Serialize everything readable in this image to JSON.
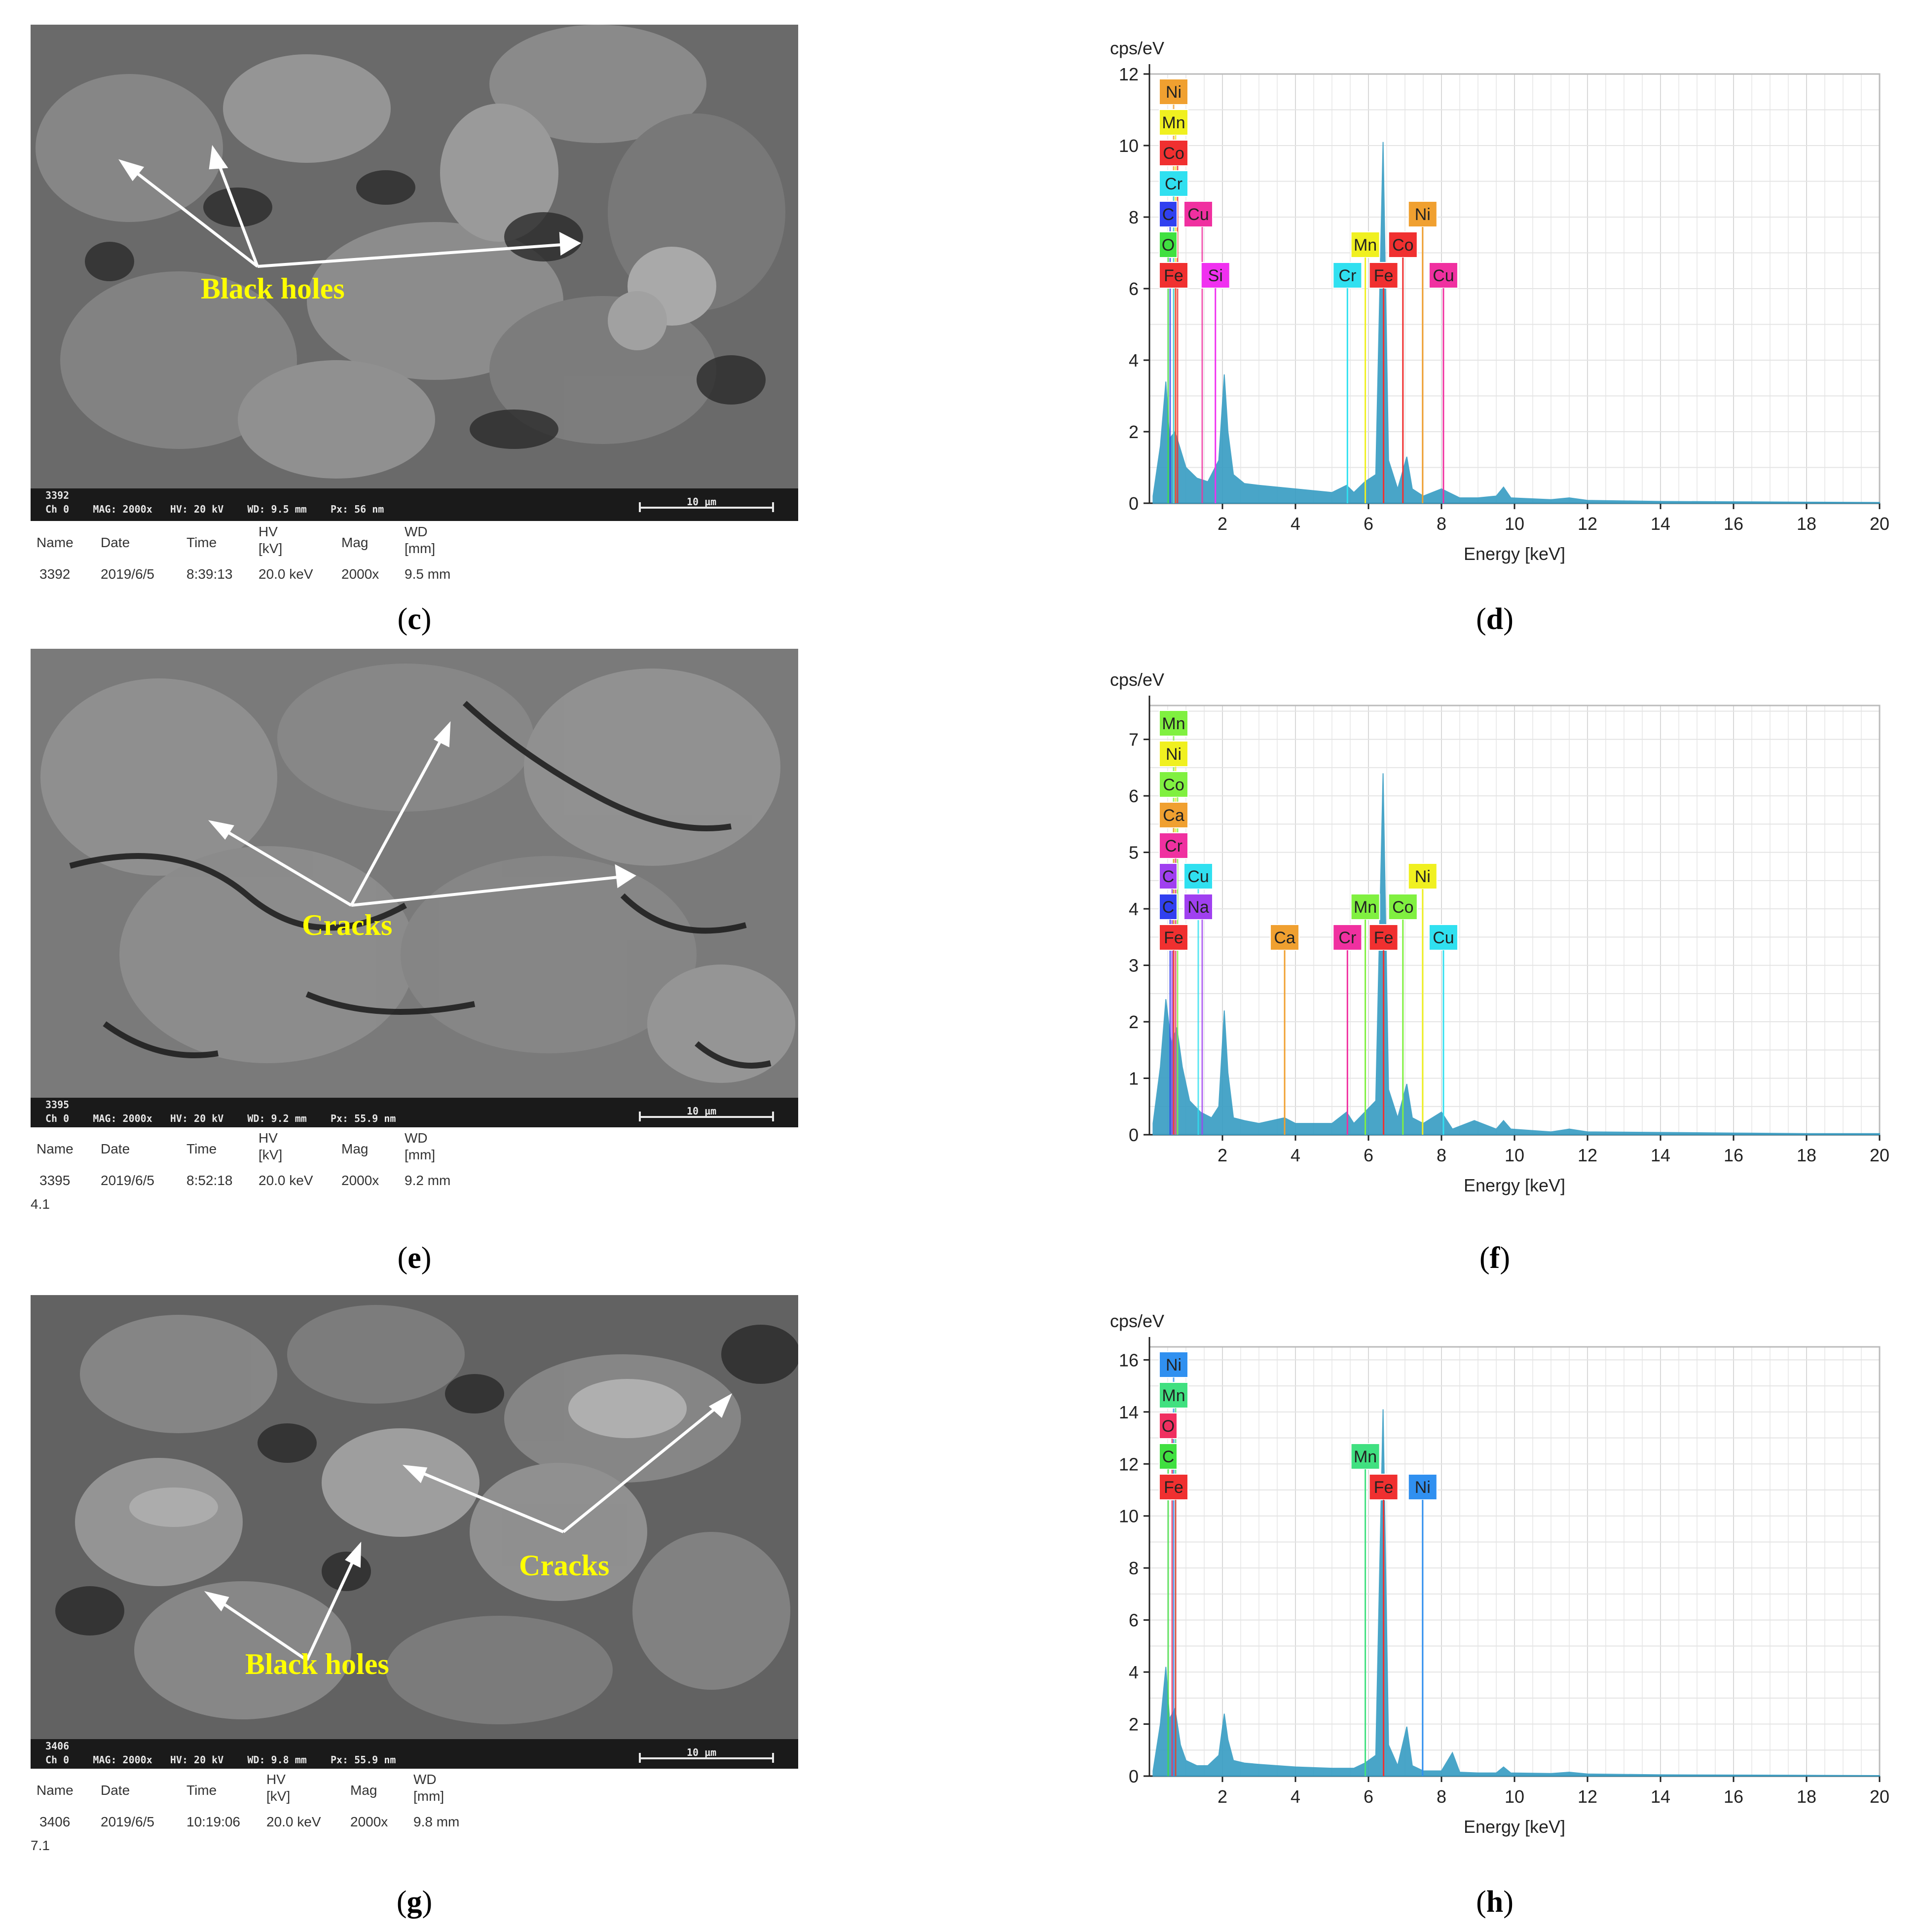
{
  "panels": [
    {
      "id": "c",
      "label": "c",
      "sem_id": "3392",
      "bar_info": "Ch 0    MAG: 2000x   HV: 20 kV    WD: 9.5 mm    Px: 56 nm",
      "scale_label": "10 µm",
      "meta_headers": {
        "name": "Name",
        "date": "Date",
        "time": "Time",
        "hv": "HV",
        "hv_unit": "[kV]",
        "mag": "Mag",
        "wd": "WD",
        "wd_unit": "[mm]"
      },
      "meta_values": {
        "name": "3392",
        "date": "2019/6/5",
        "time": "8:39:13",
        "hv": "20.0 keV",
        "mag": "2000x",
        "wd": "9.5 mm"
      },
      "extra": "",
      "annotations": [
        "Black holes"
      ]
    },
    {
      "id": "e",
      "label": "e",
      "sem_id": "3395",
      "bar_info": "Ch 0    MAG: 2000x   HV: 20 kV    WD: 9.2 mm    Px: 55.9 nm",
      "scale_label": "10 µm",
      "meta_headers": {
        "name": "Name",
        "date": "Date",
        "time": "Time",
        "hv": "HV",
        "hv_unit": "[kV]",
        "mag": "Mag",
        "wd": "WD",
        "wd_unit": "[mm]"
      },
      "meta_values": {
        "name": "3395",
        "date": "2019/6/5",
        "time": "8:52:18",
        "hv": "20.0 keV",
        "mag": "2000x",
        "wd": "9.2 mm"
      },
      "extra": "4.1",
      "annotations": [
        "Cracks"
      ]
    },
    {
      "id": "g",
      "label": "g",
      "sem_id": "3406",
      "bar_info": "Ch 0    MAG: 2000x   HV: 20 kV    WD: 9.8 mm    Px: 55.9 nm",
      "scale_label": "10 µm",
      "meta_headers": {
        "name": "Name",
        "date": "Date",
        "time": "Time",
        "hv": "HV",
        "hv_unit": "[kV]",
        "mag": "Mag",
        "wd": "WD",
        "wd_unit": "[mm]"
      },
      "meta_values": {
        "name": "3406",
        "date": "2019/6/5",
        "time": "10:19:06",
        "hv": "20.0 keV",
        "mag": "2000x",
        "wd": "9.8 mm"
      },
      "extra": "7.1",
      "annotations": [
        "Cracks",
        "Black holes"
      ]
    }
  ],
  "chart_data": [
    {
      "type": "line",
      "panel": "d",
      "ylabel": "cps/eV",
      "xlabel": "Energy [keV]",
      "xlim": [
        0,
        20
      ],
      "ylim": [
        0,
        12
      ],
      "yticks": [
        0,
        2,
        4,
        6,
        8,
        10,
        12
      ],
      "xticks": [
        2,
        4,
        6,
        8,
        10,
        12,
        14,
        16,
        18,
        20
      ],
      "grid": true,
      "series": [
        {
          "x": [
            0.1,
            0.3,
            0.45,
            0.55,
            0.7,
            0.85,
            1.0,
            1.3,
            1.6,
            1.9,
            2.05,
            2.15,
            2.3,
            2.6,
            3.0,
            4.0,
            5.0,
            5.4,
            5.6,
            5.9,
            6.2,
            6.4,
            6.55,
            6.8,
            7.05,
            7.2,
            7.5,
            8.0,
            8.5,
            9.0,
            9.5,
            9.7,
            9.9,
            11.0,
            11.5,
            12.0,
            14.0,
            16.0,
            18.0,
            20.0
          ],
          "y": [
            0.2,
            1.6,
            3.4,
            1.8,
            2.0,
            1.5,
            1.0,
            0.7,
            0.6,
            1.2,
            3.6,
            2.0,
            0.8,
            0.55,
            0.5,
            0.4,
            0.3,
            0.5,
            0.3,
            0.6,
            0.8,
            10.1,
            1.2,
            0.4,
            1.3,
            0.4,
            0.2,
            0.4,
            0.15,
            0.15,
            0.2,
            0.45,
            0.15,
            0.1,
            0.15,
            0.08,
            0.05,
            0.04,
            0.03,
            0.02
          ]
        }
      ],
      "element_labels": [
        {
          "text": "Ni",
          "color": "#f0a030",
          "row": 0,
          "group": "low"
        },
        {
          "text": "Mn",
          "color": "#f0f020",
          "row": 1,
          "group": "low"
        },
        {
          "text": "Co",
          "color": "#f03030",
          "row": 2,
          "group": "low"
        },
        {
          "text": "Cr",
          "color": "#30e0f0",
          "row": 3,
          "group": "low"
        },
        {
          "text": "C",
          "color": "#3040f0",
          "row": 4,
          "group": "low"
        },
        {
          "text": "Cu",
          "color": "#f030a0",
          "row": 4,
          "group": "low2"
        },
        {
          "text": "O",
          "color": "#40e040",
          "row": 5,
          "group": "low"
        },
        {
          "text": "Fe",
          "color": "#f03030",
          "row": 6,
          "group": "low"
        },
        {
          "text": "Si",
          "color": "#f030f0",
          "row": 6,
          "group": "si"
        },
        {
          "text": "Ni",
          "color": "#f0a030",
          "row": 4,
          "group": "high"
        },
        {
          "text": "Mn",
          "color": "#f0f020",
          "row": 5,
          "group": "high"
        },
        {
          "text": "Co",
          "color": "#f03030",
          "row": 5,
          "group": "high"
        },
        {
          "text": "Cr",
          "color": "#30e0f0",
          "row": 6,
          "group": "high"
        },
        {
          "text": "Fe",
          "color": "#f03030",
          "row": 6,
          "group": "high"
        },
        {
          "text": "Cu",
          "color": "#f030a0",
          "row": 6,
          "group": "high"
        }
      ]
    },
    {
      "type": "line",
      "panel": "f",
      "ylabel": "cps/eV",
      "xlabel": "Energy [keV]",
      "xlim": [
        0,
        20
      ],
      "ylim": [
        0,
        7.6
      ],
      "yticks": [
        0,
        1,
        2,
        3,
        4,
        5,
        6,
        7
      ],
      "xticks": [
        2,
        4,
        6,
        8,
        10,
        12,
        14,
        16,
        18,
        20
      ],
      "grid": true,
      "series": [
        {
          "x": [
            0.1,
            0.3,
            0.45,
            0.6,
            0.75,
            0.9,
            1.1,
            1.4,
            1.7,
            1.9,
            2.05,
            2.15,
            2.3,
            2.6,
            3.0,
            3.7,
            4.0,
            5.0,
            5.4,
            5.6,
            5.9,
            6.2,
            6.4,
            6.55,
            6.8,
            7.05,
            7.2,
            7.5,
            8.0,
            8.3,
            8.9,
            9.5,
            9.7,
            9.9,
            11.0,
            11.5,
            12.0,
            14.0,
            16.0,
            18.0,
            20.0
          ],
          "y": [
            0.2,
            1.2,
            2.4,
            1.6,
            1.9,
            1.2,
            0.6,
            0.4,
            0.3,
            0.5,
            2.2,
            1.1,
            0.3,
            0.25,
            0.2,
            0.3,
            0.2,
            0.2,
            0.4,
            0.2,
            0.4,
            0.6,
            6.4,
            0.8,
            0.3,
            0.9,
            0.3,
            0.2,
            0.4,
            0.1,
            0.25,
            0.1,
            0.25,
            0.1,
            0.05,
            0.1,
            0.05,
            0.04,
            0.03,
            0.02,
            0.02
          ]
        }
      ],
      "element_labels": [
        {
          "text": "Mn",
          "color": "#80f040",
          "row": 0,
          "group": "low"
        },
        {
          "text": "Ni",
          "color": "#f0f020",
          "row": 1,
          "group": "low"
        },
        {
          "text": "Co",
          "color": "#80f040",
          "row": 2,
          "group": "low"
        },
        {
          "text": "Ca",
          "color": "#f0a030",
          "row": 3,
          "group": "low"
        },
        {
          "text": "Cr",
          "color": "#f030a0",
          "row": 4,
          "group": "low"
        },
        {
          "text": "C",
          "color": "#a040f0",
          "row": 5,
          "group": "low"
        },
        {
          "text": "Cu",
          "color": "#30e0f0",
          "row": 5,
          "group": "low2"
        },
        {
          "text": "C",
          "color": "#3040f0",
          "row": 6,
          "group": "low"
        },
        {
          "text": "Na",
          "color": "#a040f0",
          "row": 6,
          "group": "low2"
        },
        {
          "text": "Fe",
          "color": "#f03030",
          "row": 7,
          "group": "low"
        },
        {
          "text": "Ca",
          "color": "#f0a030",
          "row": 7,
          "group": "ca"
        },
        {
          "text": "Ni",
          "color": "#f0f020",
          "row": 5,
          "group": "high"
        },
        {
          "text": "Mn",
          "color": "#80f040",
          "row": 6,
          "group": "high"
        },
        {
          "text": "Co",
          "color": "#80f040",
          "row": 6,
          "group": "high"
        },
        {
          "text": "Cr",
          "color": "#f030a0",
          "row": 7,
          "group": "high"
        },
        {
          "text": "Fe",
          "color": "#f03030",
          "row": 7,
          "group": "high"
        },
        {
          "text": "Cu",
          "color": "#30e0f0",
          "row": 7,
          "group": "high"
        }
      ]
    },
    {
      "type": "line",
      "panel": "h",
      "ylabel": "cps/eV",
      "xlabel": "Energy [keV]",
      "xlim": [
        0,
        20
      ],
      "ylim": [
        0,
        16.5
      ],
      "yticks": [
        0,
        2,
        4,
        6,
        8,
        10,
        12,
        14,
        16
      ],
      "xticks": [
        2,
        4,
        6,
        8,
        10,
        12,
        14,
        16,
        18,
        20
      ],
      "grid": true,
      "series": [
        {
          "x": [
            0.1,
            0.3,
            0.45,
            0.55,
            0.7,
            0.85,
            1.0,
            1.3,
            1.6,
            1.9,
            2.05,
            2.15,
            2.3,
            2.6,
            3.0,
            4.0,
            5.0,
            5.6,
            5.9,
            6.2,
            6.4,
            6.55,
            6.8,
            7.05,
            7.2,
            7.5,
            8.0,
            8.3,
            8.5,
            9.0,
            9.5,
            9.7,
            9.9,
            11.0,
            11.5,
            12.0,
            14.0,
            16.0,
            18.0,
            20.0
          ],
          "y": [
            0.2,
            2.0,
            4.2,
            2.2,
            2.6,
            1.2,
            0.6,
            0.4,
            0.4,
            0.8,
            2.4,
            1.4,
            0.6,
            0.5,
            0.45,
            0.35,
            0.3,
            0.3,
            0.5,
            0.8,
            14.1,
            1.2,
            0.4,
            1.9,
            0.4,
            0.2,
            0.2,
            0.9,
            0.15,
            0.12,
            0.12,
            0.35,
            0.12,
            0.1,
            0.15,
            0.08,
            0.05,
            0.04,
            0.03,
            0.02
          ]
        }
      ],
      "element_labels": [
        {
          "text": "Ni",
          "color": "#3090f0",
          "row": 0,
          "group": "low"
        },
        {
          "text": "Mn",
          "color": "#40e080",
          "row": 1,
          "group": "low"
        },
        {
          "text": "O",
          "color": "#f03060",
          "row": 2,
          "group": "low"
        },
        {
          "text": "C",
          "color": "#40e040",
          "row": 3,
          "group": "low"
        },
        {
          "text": "Fe",
          "color": "#f03030",
          "row": 4,
          "group": "low"
        },
        {
          "text": "Mn",
          "color": "#40e080",
          "row": 3,
          "group": "high"
        },
        {
          "text": "Fe",
          "color": "#f03030",
          "row": 4,
          "group": "high"
        },
        {
          "text": "Ni",
          "color": "#3090f0",
          "row": 4,
          "group": "high"
        }
      ]
    }
  ],
  "labels": {
    "c": "c",
    "d": "d",
    "e": "e",
    "f": "f",
    "g": "g",
    "h": "h"
  },
  "colors": {
    "spectrum": "#3a9ec4",
    "anno": "#ffff00",
    "arrow": "#ffffff"
  }
}
